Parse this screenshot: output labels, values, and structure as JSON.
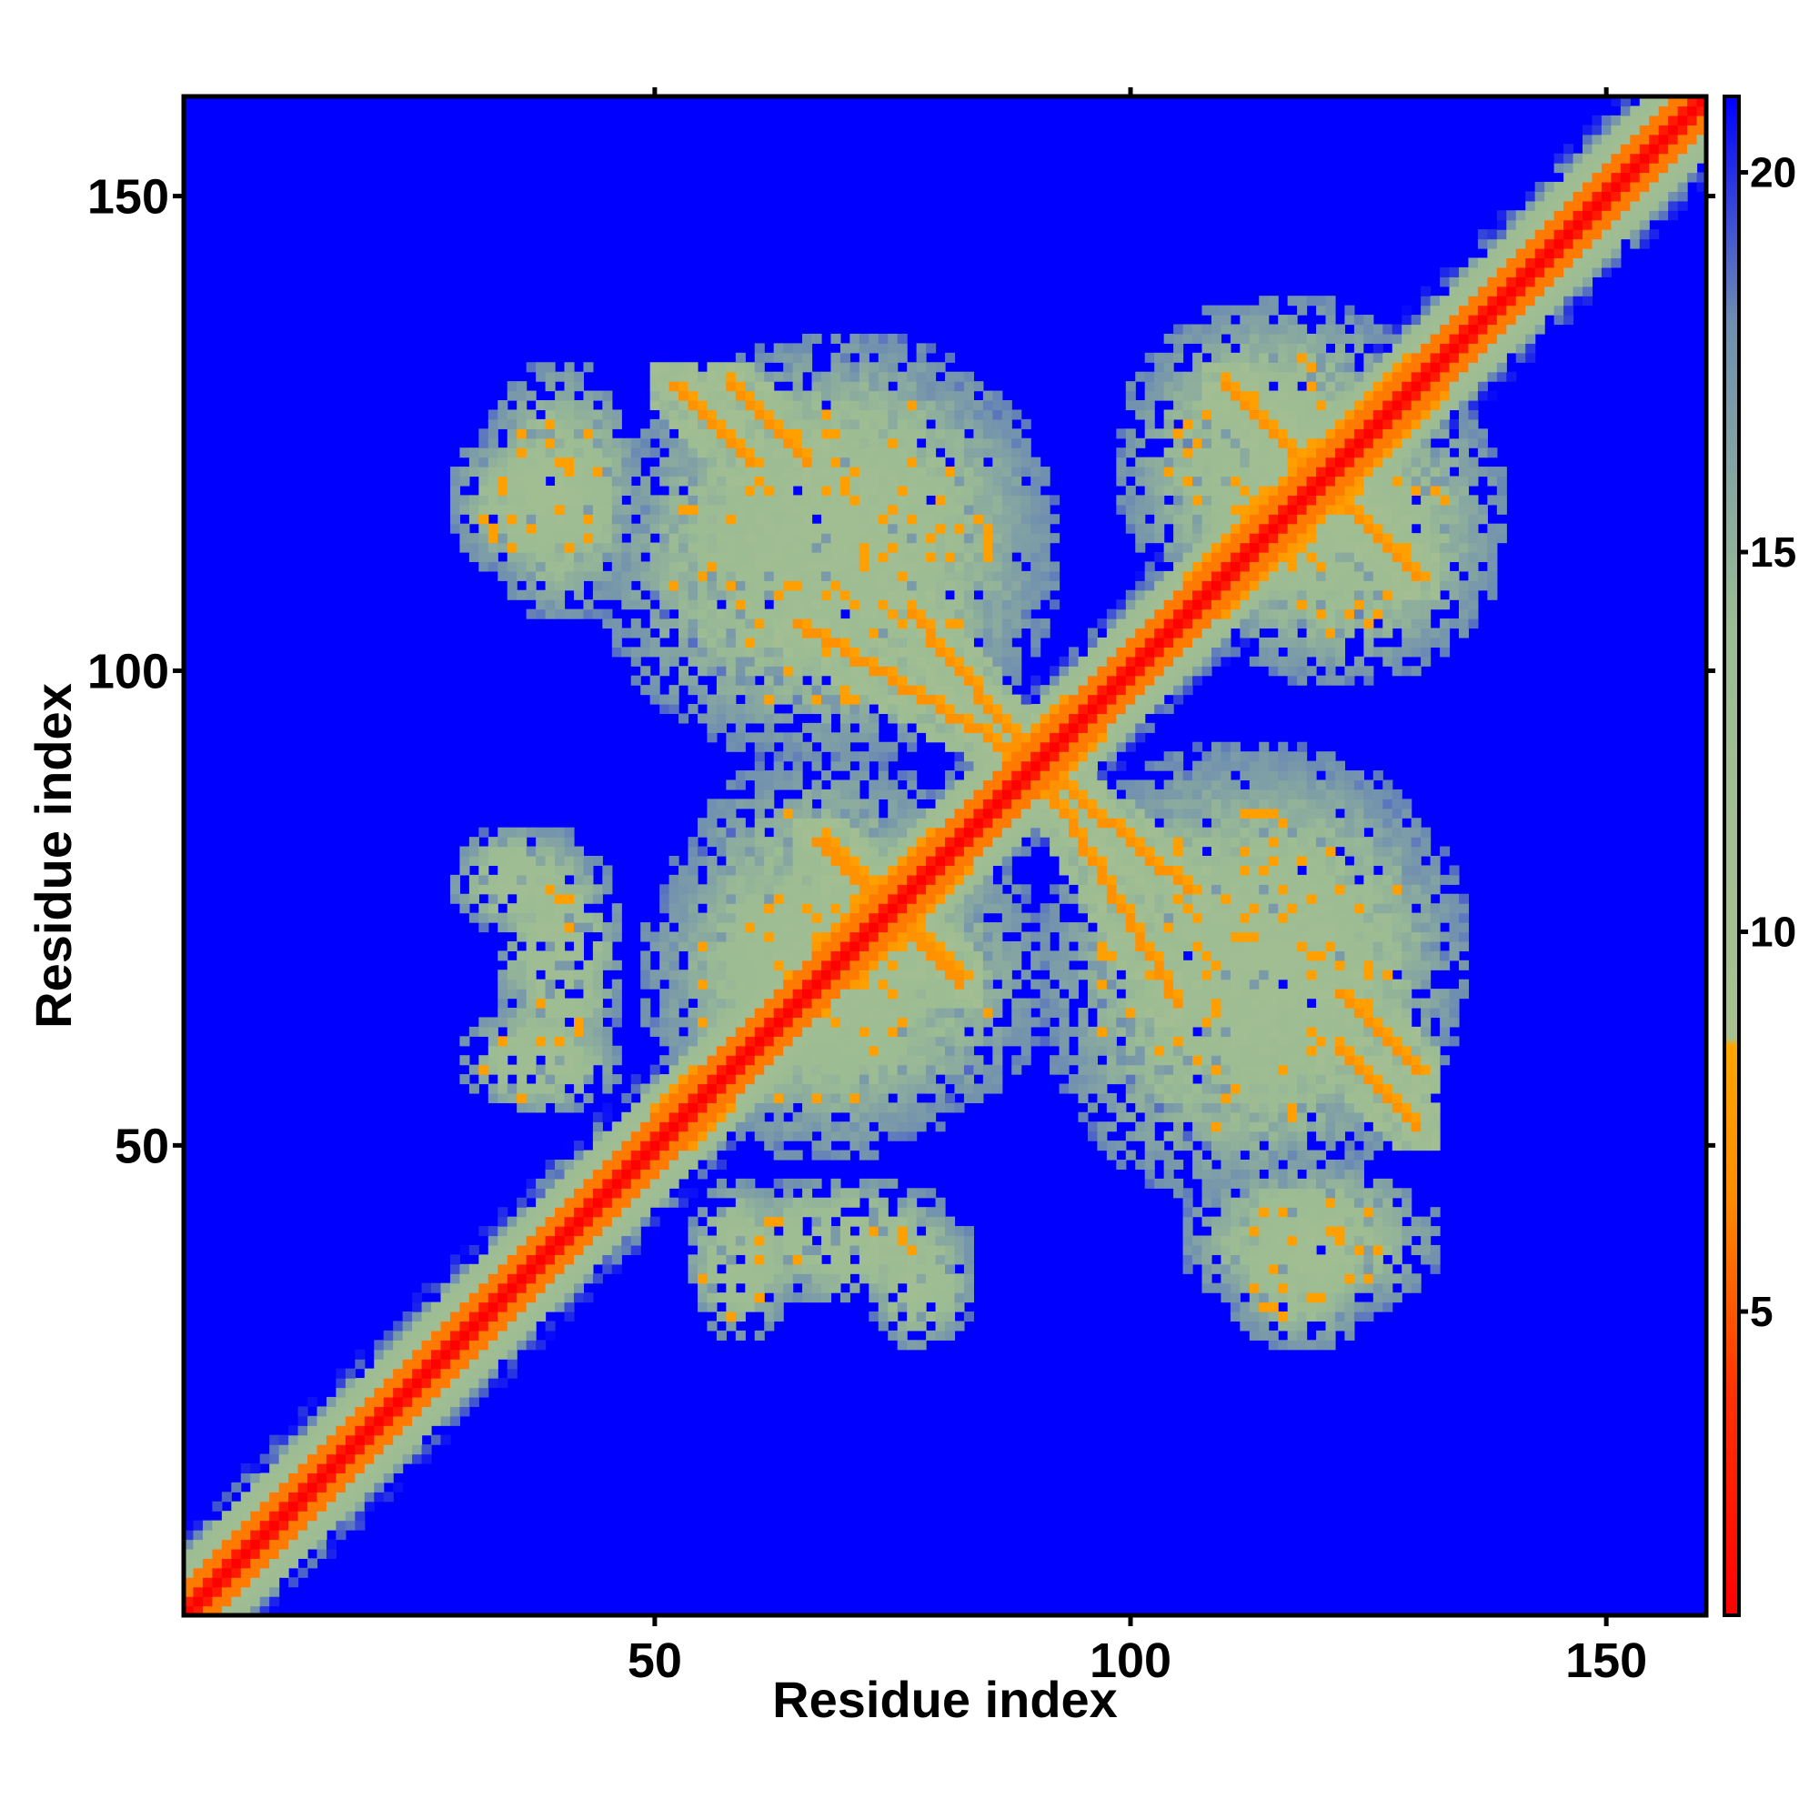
{
  "chart_data": {
    "type": "heatmap",
    "title": "",
    "xlabel": "Residue index",
    "ylabel": "Residue index",
    "xlim": [
      1,
      160
    ],
    "ylim": [
      1,
      160
    ],
    "x_ticks": [
      50,
      100,
      150
    ],
    "y_ticks": [
      50,
      100,
      150
    ],
    "grid": false,
    "legend": "colorbar-right",
    "colorbar": {
      "range": [
        1,
        21
      ],
      "ticks": [
        5,
        10,
        15,
        20
      ],
      "stops": [
        {
          "value": 1,
          "color": "#ff0000"
        },
        {
          "value": 4,
          "color": "#ff3300"
        },
        {
          "value": 6.5,
          "color": "#ff8c00"
        },
        {
          "value": 8.5,
          "color": "#ffa500"
        },
        {
          "value": 8.6,
          "color": "#a8c090"
        },
        {
          "value": 14,
          "color": "#9cbc94"
        },
        {
          "value": 18,
          "color": "#6f8fb0"
        },
        {
          "value": 21,
          "color": "#0000ff"
        }
      ]
    },
    "background_value": 21,
    "matrix_description_structure": {
      "diagonal": {
        "value": 3,
        "halfwidth": 1.6,
        "shoulder": 6,
        "cutoff": 9
      },
      "helices": [
        {
          "c": 52,
          "w": 2
        },
        {
          "c": 73,
          "w": 6
        },
        {
          "c": 90,
          "w": 3
        },
        {
          "c": 112,
          "w": 6
        },
        {
          "c": 123,
          "w": 6
        }
      ],
      "antidiagonals": [
        {
          "from": [
            52,
            130
          ],
          "to": [
            60,
            122
          ],
          "value": 7
        },
        {
          "from": [
            65,
            105
          ],
          "to": [
            90,
            90
          ],
          "value": 7
        },
        {
          "from": [
            90,
            90
          ],
          "to": [
            106,
            77
          ],
          "value": 7
        },
        {
          "from": [
            67,
            82
          ],
          "to": [
            82,
            68
          ],
          "value": 7
        },
        {
          "from": [
            110,
            130
          ],
          "to": [
            130,
            110
          ],
          "value": 7
        },
        {
          "from": [
            122,
            66
          ],
          "to": [
            130,
            58
          ],
          "value": 7
        }
      ],
      "blobs": [
        {
          "cx": 68,
          "cy": 112,
          "rx": 25,
          "ry": 22
        },
        {
          "cx": 68,
          "cy": 70,
          "rx": 18,
          "ry": 22
        },
        {
          "cx": 116,
          "cy": 70,
          "rx": 20,
          "ry": 22
        },
        {
          "cx": 122,
          "cy": 116,
          "rx": 18,
          "ry": 18
        },
        {
          "cx": 38,
          "cy": 118,
          "rx": 10,
          "ry": 9
        },
        {
          "cx": 36,
          "cy": 78,
          "rx": 8,
          "ry": 6
        },
        {
          "cx": 70,
          "cy": 40,
          "rx": 14,
          "ry": 7
        },
        {
          "cx": 119,
          "cy": 40,
          "rx": 14,
          "ry": 9
        },
        {
          "cx": 38,
          "cy": 59,
          "rx": 9,
          "ry": 6
        }
      ]
    }
  }
}
